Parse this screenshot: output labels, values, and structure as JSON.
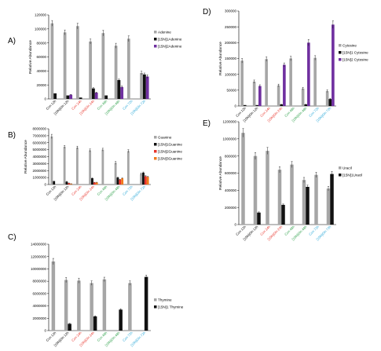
{
  "colors": {
    "gray": "#a6a6a6",
    "black": "#111111",
    "purple": "#7030a0",
    "red": "#e8342b",
    "orange": "#f07a1c",
    "cat_black": "#000000",
    "cat_red": "#e8342b",
    "cat_green": "#2ea04a",
    "cat_cyan": "#2aa8d8"
  },
  "chart_data": [
    {
      "panel_label": "A)",
      "type": "bar",
      "ylabel": "Relative Abundance",
      "ylim": [
        0,
        120000
      ],
      "yticks": [
        "0",
        "20000",
        "40000",
        "60000",
        "80000",
        "100000",
        "120000"
      ],
      "categories": [
        "Con 12h",
        "[15N]Gln 12h",
        "Con 24h",
        "[15N]Gln 24h",
        "Con 48h",
        "[15N]Gln 48h",
        "Con 72h",
        "[15N]Gln 72h"
      ],
      "category_colors": [
        "cat_black",
        "cat_black",
        "cat_red",
        "cat_red",
        "cat_green",
        "cat_green",
        "cat_cyan",
        "cat_cyan"
      ],
      "series": [
        {
          "name": "Adenine",
          "color": "gray",
          "values": [
            108000,
            95000,
            104000,
            82000,
            94000,
            76000,
            86000,
            37000
          ],
          "errors": [
            4000,
            3500,
            4000,
            3500,
            4000,
            3500,
            4000,
            2500
          ]
        },
        {
          "name": "[15N]1Adenine",
          "color": "black",
          "values": [
            8000,
            5000,
            2000,
            15000,
            5000,
            27000,
            0,
            35000
          ],
          "errors": [
            0,
            0,
            0,
            1000,
            0,
            1500,
            0,
            2000
          ]
        },
        {
          "name": "[15N]2Adenine",
          "color": "purple",
          "values": [
            0,
            6000,
            0,
            9000,
            0,
            17000,
            0,
            32000
          ],
          "errors": [
            0,
            500,
            0,
            800,
            0,
            1500,
            0,
            2500
          ]
        }
      ],
      "legend": "right",
      "grid": false
    },
    {
      "panel_label": "B)",
      "type": "bar",
      "ylabel": "Relative Abundance",
      "ylim": [
        0,
        8000000
      ],
      "yticks": [
        "0",
        "1000000",
        "2000000",
        "3000000",
        "4000000",
        "5000000",
        "6000000",
        "7000000",
        "8000000"
      ],
      "categories": [
        "Con 12h",
        "[15N]Gln 12h",
        "Con 24h",
        "[15N]Gln 24h",
        "Con 48h",
        "[15N]Gln 48h",
        "Con 72h",
        "[15N]Gln 72h"
      ],
      "category_colors": [
        "cat_black",
        "cat_black",
        "cat_red",
        "cat_red",
        "cat_green",
        "cat_green",
        "cat_cyan",
        "cat_cyan"
      ],
      "series": [
        {
          "name": "Guanine",
          "color": "gray",
          "values": [
            6900000,
            5400000,
            5300000,
            4900000,
            5000000,
            3100000,
            4800000,
            1500000
          ],
          "errors": [
            300000,
            200000,
            200000,
            200000,
            200000,
            200000,
            200000,
            150000
          ]
        },
        {
          "name": "[15N]1Guanine",
          "color": "black",
          "values": [
            500000,
            400000,
            0,
            900000,
            0,
            1000000,
            0,
            1700000
          ],
          "errors": [
            0,
            50000,
            0,
            50000,
            0,
            50000,
            0,
            100000
          ]
        },
        {
          "name": "[15N]2Guanine",
          "color": "red",
          "values": [
            0,
            200000,
            0,
            300000,
            0,
            700000,
            0,
            1200000
          ],
          "errors": [
            0,
            20000,
            0,
            30000,
            0,
            50000,
            0,
            80000
          ]
        },
        {
          "name": "[15N]3Guanine",
          "color": "orange",
          "values": [
            0,
            100000,
            0,
            300000,
            0,
            900000,
            0,
            1100000
          ],
          "errors": [
            0,
            20000,
            0,
            30000,
            0,
            50000,
            0,
            80000
          ]
        }
      ],
      "legend": "right",
      "grid": false
    },
    {
      "panel_label": "C)",
      "type": "bar",
      "ylabel": "",
      "ylim": [
        0,
        14000000
      ],
      "yticks": [
        "0",
        "2000000",
        "4000000",
        "6000000",
        "8000000",
        "10000000",
        "12000000",
        "14000000"
      ],
      "categories": [
        "Con 12h",
        "[15N]Gln 12h",
        "Con 24h",
        "[15N]Gln 24h",
        "Con 48h",
        "[15N]Gln 48h",
        "Con 72h",
        "[15N]Gln 72h"
      ],
      "category_colors": [
        "cat_black",
        "cat_black",
        "cat_red",
        "cat_red",
        "cat_green",
        "cat_green",
        "cat_cyan",
        "cat_cyan"
      ],
      "series": [
        {
          "name": "Thymine",
          "color": "gray",
          "values": [
            11200000,
            8200000,
            8100000,
            7700000,
            8300000,
            0,
            7700000,
            0
          ],
          "errors": [
            500000,
            400000,
            400000,
            350000,
            350000,
            0,
            350000,
            0
          ]
        },
        {
          "name": "[15N]1 Thymine",
          "color": "black",
          "values": [
            0,
            1100000,
            0,
            2300000,
            0,
            3400000,
            0,
            8700000
          ],
          "errors": [
            0,
            80000,
            0,
            100000,
            0,
            150000,
            0,
            300000
          ]
        }
      ],
      "legend": "right",
      "grid": false
    },
    {
      "panel_label": "D)",
      "type": "bar",
      "ylabel": "Relative Abundance",
      "ylim": [
        0,
        300000
      ],
      "yticks": [
        "0",
        "50000",
        "100000",
        "150000",
        "200000",
        "250000",
        "300000"
      ],
      "categories": [
        "Con 12h",
        "[15N]Gln 12h",
        "Con 24h",
        "[15N]Gln 24h",
        "Con 48h",
        "[15N]Gln 48h",
        "Con 72h",
        "[15N]Gln 72h"
      ],
      "category_colors": [
        "cat_black",
        "cat_black",
        "cat_red",
        "cat_red",
        "cat_green",
        "cat_green",
        "cat_cyan",
        "cat_cyan"
      ],
      "series": [
        {
          "name": "Cytosine",
          "color": "gray",
          "values": [
            143000,
            77000,
            148000,
            65000,
            150000,
            55000,
            152000,
            47000
          ],
          "errors": [
            7000,
            5000,
            7000,
            4000,
            7000,
            4000,
            7000,
            4000
          ]
        },
        {
          "name": "[15N]1 Cytosine",
          "color": "black",
          "values": [
            3000,
            3000,
            0,
            5000,
            0,
            5000,
            0,
            22000
          ],
          "errors": [
            0,
            0,
            0,
            500,
            0,
            500,
            0,
            2000
          ]
        },
        {
          "name": "[15N]2 Cytosine",
          "color": "purple",
          "values": [
            0,
            63000,
            0,
            130000,
            0,
            200000,
            0,
            257000
          ],
          "errors": [
            0,
            4000,
            0,
            6000,
            0,
            10000,
            0,
            12000
          ]
        }
      ],
      "legend": "right",
      "grid": false
    },
    {
      "panel_label": "E)",
      "type": "bar",
      "ylabel": "Relative Abundance",
      "ylim": [
        0,
        1200000
      ],
      "yticks": [
        "0",
        "200000",
        "400000",
        "600000",
        "800000",
        "1000000",
        "1200000"
      ],
      "categories": [
        "Con 12h",
        "[15N]Gln 12h",
        "Con 24h",
        "[15N]Gln 24h",
        "Con 48h",
        "[15N]Gln 48h",
        "Con 72h",
        "[15N]Gln 72h"
      ],
      "category_colors": [
        "cat_black",
        "cat_black",
        "cat_red",
        "cat_red",
        "cat_green",
        "cat_green",
        "cat_cyan",
        "cat_cyan"
      ],
      "series": [
        {
          "name": "Uracil",
          "color": "gray",
          "values": [
            1070000,
            800000,
            860000,
            640000,
            700000,
            520000,
            580000,
            420000
          ],
          "errors": [
            50000,
            40000,
            40000,
            35000,
            35000,
            30000,
            30000,
            25000
          ]
        },
        {
          "name": "[15N]1Uracil",
          "color": "black",
          "values": [
            0,
            140000,
            0,
            230000,
            0,
            440000,
            0,
            590000
          ],
          "errors": [
            0,
            8000,
            0,
            10000,
            0,
            20000,
            0,
            30000
          ]
        }
      ],
      "legend": "right",
      "grid": false
    }
  ]
}
